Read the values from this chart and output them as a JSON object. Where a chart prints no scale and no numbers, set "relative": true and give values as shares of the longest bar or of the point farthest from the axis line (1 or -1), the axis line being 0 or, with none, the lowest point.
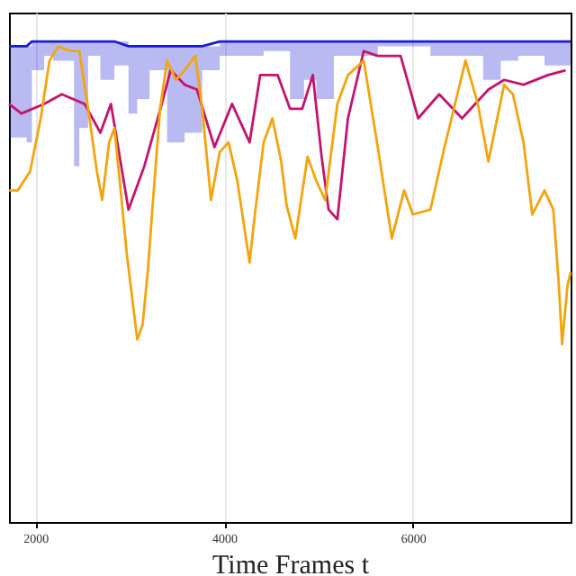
{
  "chart_data": {
    "type": "line",
    "xlabel": "Time Frames t",
    "relative": true,
    "grid": "x",
    "xlim": [
      1720,
      7670
    ],
    "xticks": [
      2000,
      4000,
      6000
    ],
    "series": [
      {
        "color": "#1a1ad8",
        "x": [
          1721,
          1907,
          1963,
          2093,
          2186,
          2409,
          2465,
          2558,
          2688,
          2837,
          2986,
          3079,
          3209,
          3395,
          3581,
          3767,
          3953,
          4139,
          4418,
          4697,
          4846,
          4976,
          5162,
          5627,
          6185,
          6464,
          6744,
          6930,
          7115,
          7394,
          7670
        ],
        "values": [
          0.99,
          0.99,
          1.0,
          1.0,
          1.0,
          1.0,
          1.0,
          1.0,
          1.0,
          1.0,
          0.99,
          0.99,
          0.99,
          0.99,
          0.99,
          0.99,
          1.0,
          1.0,
          1.0,
          1.0,
          1.0,
          1.0,
          1.0,
          1.0,
          1.0,
          1.0,
          1.0,
          1.0,
          1.0,
          1.0,
          1.0
        ],
        "upper": [
          0.99,
          0.99,
          1.0,
          1.0,
          1.0,
          1.0,
          1.0,
          1.0,
          1.0,
          1.0,
          0.99,
          0.99,
          0.99,
          0.99,
          0.99,
          0.99,
          1.0,
          1.0,
          1.0,
          1.0,
          1.0,
          1.0,
          1.0,
          1.0,
          1.0,
          1.0,
          1.0,
          1.0,
          1.0,
          1.0,
          1.0
        ],
        "lower": [
          0.8,
          0.79,
          0.94,
          0.97,
          0.96,
          0.74,
          0.82,
          0.97,
          0.92,
          0.95,
          0.85,
          0.88,
          0.94,
          0.79,
          0.81,
          0.94,
          0.97,
          0.97,
          0.98,
          0.88,
          0.92,
          0.88,
          0.97,
          0.99,
          0.97,
          0.97,
          0.92,
          0.96,
          0.97,
          0.95,
          0.95
        ]
      },
      {
        "color": "#c4146e",
        "x": [
          1721,
          1851,
          2093,
          2279,
          2521,
          2688,
          2800,
          2893,
          2986,
          3153,
          3339,
          3432,
          3581,
          3711,
          3897,
          4083,
          4269,
          4381,
          4567,
          4697,
          4827,
          4939,
          5032,
          5106,
          5199,
          5311,
          5478,
          5627,
          5869,
          6055,
          6278,
          6520,
          6799,
          6966,
          7171,
          7431,
          7617
        ],
        "values": [
          0.87,
          0.85,
          0.87,
          0.89,
          0.87,
          0.81,
          0.87,
          0.76,
          0.65,
          0.74,
          0.87,
          0.94,
          0.91,
          0.9,
          0.78,
          0.87,
          0.79,
          0.93,
          0.93,
          0.86,
          0.86,
          0.93,
          0.76,
          0.65,
          0.63,
          0.84,
          0.98,
          0.97,
          0.97,
          0.84,
          0.89,
          0.84,
          0.9,
          0.92,
          0.91,
          0.93,
          0.94
        ]
      },
      {
        "color": "#f2a50c",
        "x": [
          1721,
          1814,
          1944,
          2056,
          2149,
          2242,
          2372,
          2465,
          2558,
          2651,
          2707,
          2781,
          2837,
          2893,
          2967,
          3023,
          3079,
          3135,
          3190,
          3246,
          3321,
          3395,
          3488,
          3581,
          3693,
          3767,
          3860,
          3953,
          4046,
          4139,
          4269,
          4325,
          4418,
          4511,
          4604,
          4660,
          4753,
          4883,
          4976,
          5069,
          5199,
          5311,
          5478,
          5627,
          5776,
          5906,
          5999,
          6185,
          6334,
          6557,
          6687,
          6799,
          6966,
          7059,
          7171,
          7264,
          7394,
          7487,
          7543,
          7580,
          7636,
          7670
        ],
        "values": [
          0.69,
          0.69,
          0.73,
          0.84,
          0.96,
          0.99,
          0.98,
          0.98,
          0.86,
          0.73,
          0.67,
          0.79,
          0.82,
          0.71,
          0.56,
          0.47,
          0.38,
          0.41,
          0.52,
          0.67,
          0.86,
          0.96,
          0.92,
          0.94,
          0.97,
          0.86,
          0.67,
          0.77,
          0.79,
          0.71,
          0.54,
          0.64,
          0.79,
          0.84,
          0.75,
          0.66,
          0.59,
          0.76,
          0.71,
          0.67,
          0.87,
          0.93,
          0.96,
          0.78,
          0.59,
          0.69,
          0.64,
          0.65,
          0.78,
          0.96,
          0.87,
          0.75,
          0.91,
          0.89,
          0.79,
          0.64,
          0.69,
          0.65,
          0.5,
          0.37,
          0.49,
          0.52
        ]
      }
    ]
  }
}
